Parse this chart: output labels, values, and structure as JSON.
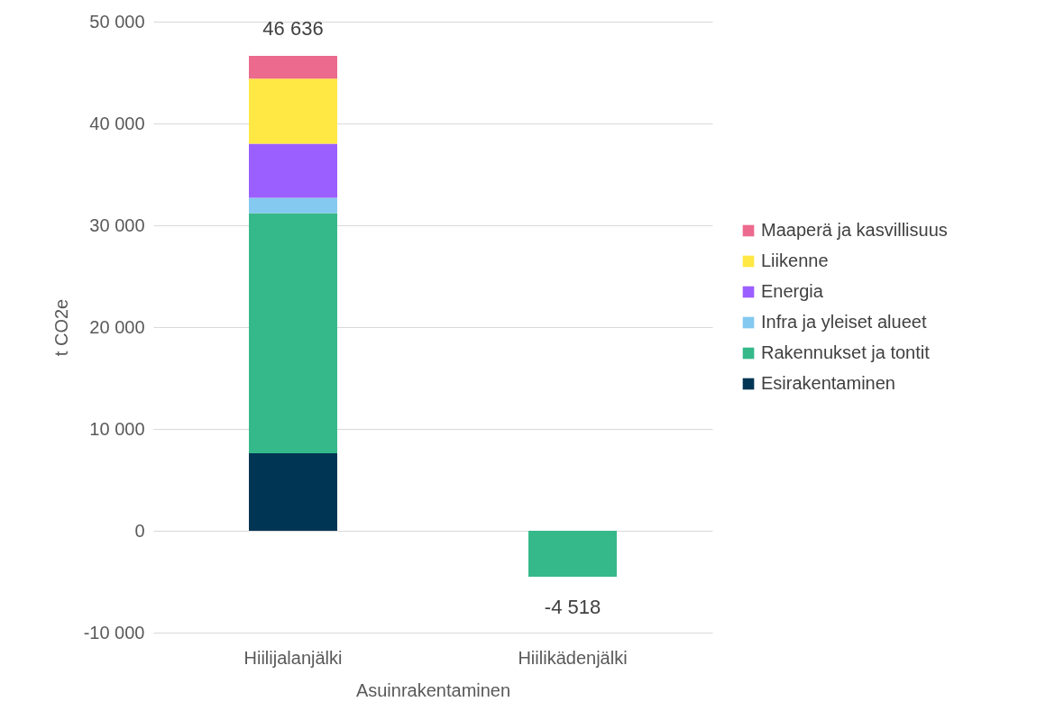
{
  "chart_data": {
    "type": "bar",
    "stacked": true,
    "ylabel": "t CO2e",
    "xlabel": "Asuinrakentaminen",
    "categories": [
      "Hiilijalanjälki",
      "Hiilikädenjälki"
    ],
    "series": [
      {
        "name": "Esirakentaminen",
        "color": "#003554",
        "values": [
          7600,
          null
        ]
      },
      {
        "name": "Rakennukset ja tontit",
        "color": "#36b98a",
        "values": [
          23600,
          -4518
        ]
      },
      {
        "name": "Infra ja yleiset alueet",
        "color": "#84c9f0",
        "values": [
          1500,
          null
        ]
      },
      {
        "name": "Energia",
        "color": "#9b5fff",
        "values": [
          5300,
          null
        ]
      },
      {
        "name": "Liikenne",
        "color": "#ffe843",
        "values": [
          6400,
          null
        ]
      },
      {
        "name": "Maaperä ja kasvillisuus",
        "color": "#ec6a8e",
        "values": [
          2236,
          null
        ]
      }
    ],
    "totals": [
      "46 636",
      "-4 518"
    ],
    "ylim": [
      -10000,
      50000
    ],
    "yticks": [
      {
        "value": -10000,
        "label": "-10 000"
      },
      {
        "value": 0,
        "label": "0"
      },
      {
        "value": 10000,
        "label": "10 000"
      },
      {
        "value": 20000,
        "label": "20 000"
      },
      {
        "value": 30000,
        "label": "30 000"
      },
      {
        "value": 40000,
        "label": "40 000"
      },
      {
        "value": 50000,
        "label": "50 000"
      }
    ],
    "grid": "y",
    "legend": "right"
  }
}
